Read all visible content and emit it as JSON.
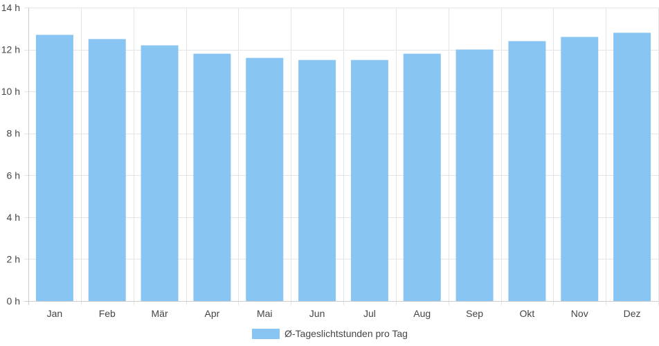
{
  "chart_data": {
    "type": "bar",
    "categories": [
      "Jan",
      "Feb",
      "Mär",
      "Apr",
      "Mai",
      "Jun",
      "Jul",
      "Aug",
      "Sep",
      "Okt",
      "Nov",
      "Dez"
    ],
    "series": [
      {
        "name": "Ø-Tageslichtstunden pro Tag",
        "values": [
          12.7,
          12.5,
          12.2,
          11.8,
          11.6,
          11.5,
          11.5,
          11.8,
          12.0,
          12.4,
          12.6,
          12.8
        ],
        "color": "#88c5f2"
      }
    ],
    "ylim": [
      0,
      14
    ],
    "y_ticks": [
      0,
      2,
      4,
      6,
      8,
      10,
      12,
      14
    ],
    "y_unit": "h",
    "grid": true,
    "legend_position": "bottom"
  }
}
